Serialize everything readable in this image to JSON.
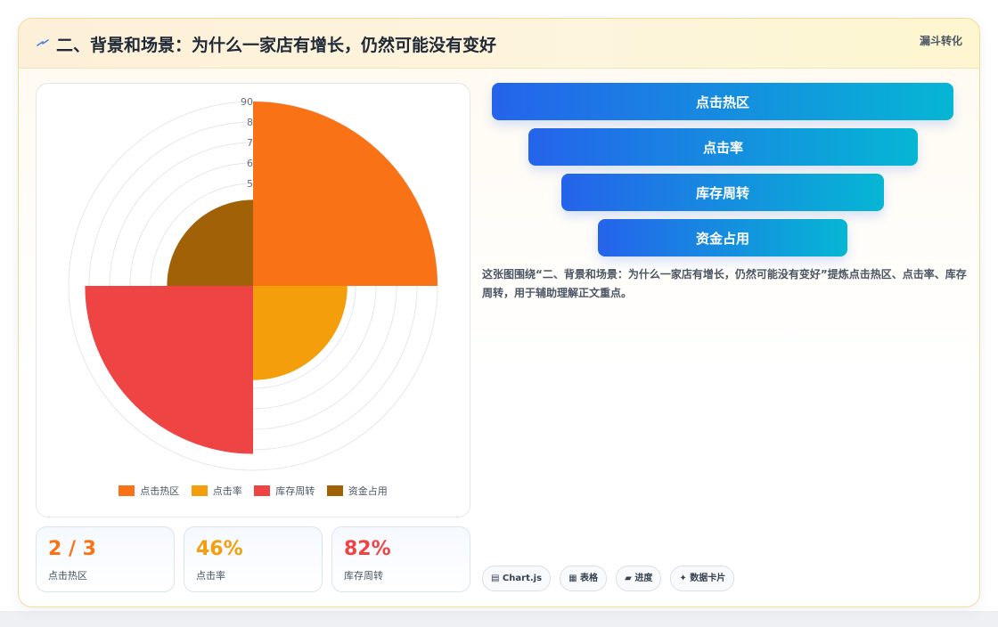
{
  "header": {
    "title": "二、背景和场景：为什么一家店有增长，仍然可能没有变好",
    "tag": "漏斗转化"
  },
  "chart_data": {
    "type": "polarArea",
    "categories": [
      "点击热区",
      "点击率",
      "库存周转",
      "资金占用"
    ],
    "values": [
      90,
      46,
      82,
      42
    ],
    "colors": [
      "#f97316",
      "#f59e0b",
      "#ef4444",
      "#a16207"
    ],
    "r_ticks": [
      "5",
      "6",
      "7",
      "8",
      "90"
    ],
    "r_max": 90,
    "legend_position": "bottom"
  },
  "stats": [
    {
      "value": "2 / 3",
      "label": "点击热区",
      "color": "#f97316"
    },
    {
      "value": "46%",
      "label": "点击率",
      "color": "#f59e0b"
    },
    {
      "value": "82%",
      "label": "库存周转",
      "color": "#ef4444"
    }
  ],
  "funnel": [
    "点击热区",
    "点击率",
    "库存周转",
    "资金占用"
  ],
  "description": "这张图围绕“二、背景和场景：为什么一家店有增长，仍然可能没有变好”提炼点击热区、点击率、库存周转，用于辅助理解正文重点。",
  "chips": [
    "▤ Chart.js",
    "▦ 表格",
    "▰ 进度",
    "✦ 数据卡片"
  ]
}
